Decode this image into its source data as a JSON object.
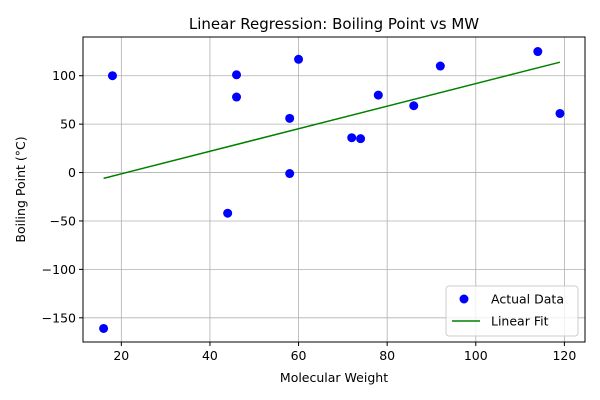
{
  "chart_data": {
    "type": "scatter",
    "title": "Linear Regression: Boiling Point vs MW",
    "xlabel": "Molecular Weight",
    "ylabel": "Boiling Point (°C)",
    "xlim": [
      11.35,
      124.65
    ],
    "ylim": [
      -175,
      140
    ],
    "xticks": [
      20,
      40,
      60,
      80,
      100,
      120
    ],
    "yticks": [
      -150,
      -100,
      -50,
      0,
      50,
      100
    ],
    "grid": true,
    "legend_position": "bottom-right",
    "series": [
      {
        "name": "Actual Data",
        "kind": "scatter",
        "color": "#0000ff",
        "points": [
          {
            "x": 16,
            "y": -161
          },
          {
            "x": 18,
            "y": 100
          },
          {
            "x": 44,
            "y": -42
          },
          {
            "x": 46,
            "y": 78
          },
          {
            "x": 46,
            "y": 101
          },
          {
            "x": 58,
            "y": 56
          },
          {
            "x": 58,
            "y": -1
          },
          {
            "x": 60,
            "y": 117
          },
          {
            "x": 72,
            "y": 36
          },
          {
            "x": 74,
            "y": 35
          },
          {
            "x": 78,
            "y": 80
          },
          {
            "x": 86,
            "y": 69
          },
          {
            "x": 92,
            "y": 110
          },
          {
            "x": 114,
            "y": 125
          },
          {
            "x": 119,
            "y": 61
          }
        ]
      },
      {
        "name": "Linear Fit",
        "kind": "line",
        "color": "#008000",
        "points": [
          {
            "x": 16,
            "y": -6
          },
          {
            "x": 119,
            "y": 114
          }
        ]
      }
    ]
  }
}
